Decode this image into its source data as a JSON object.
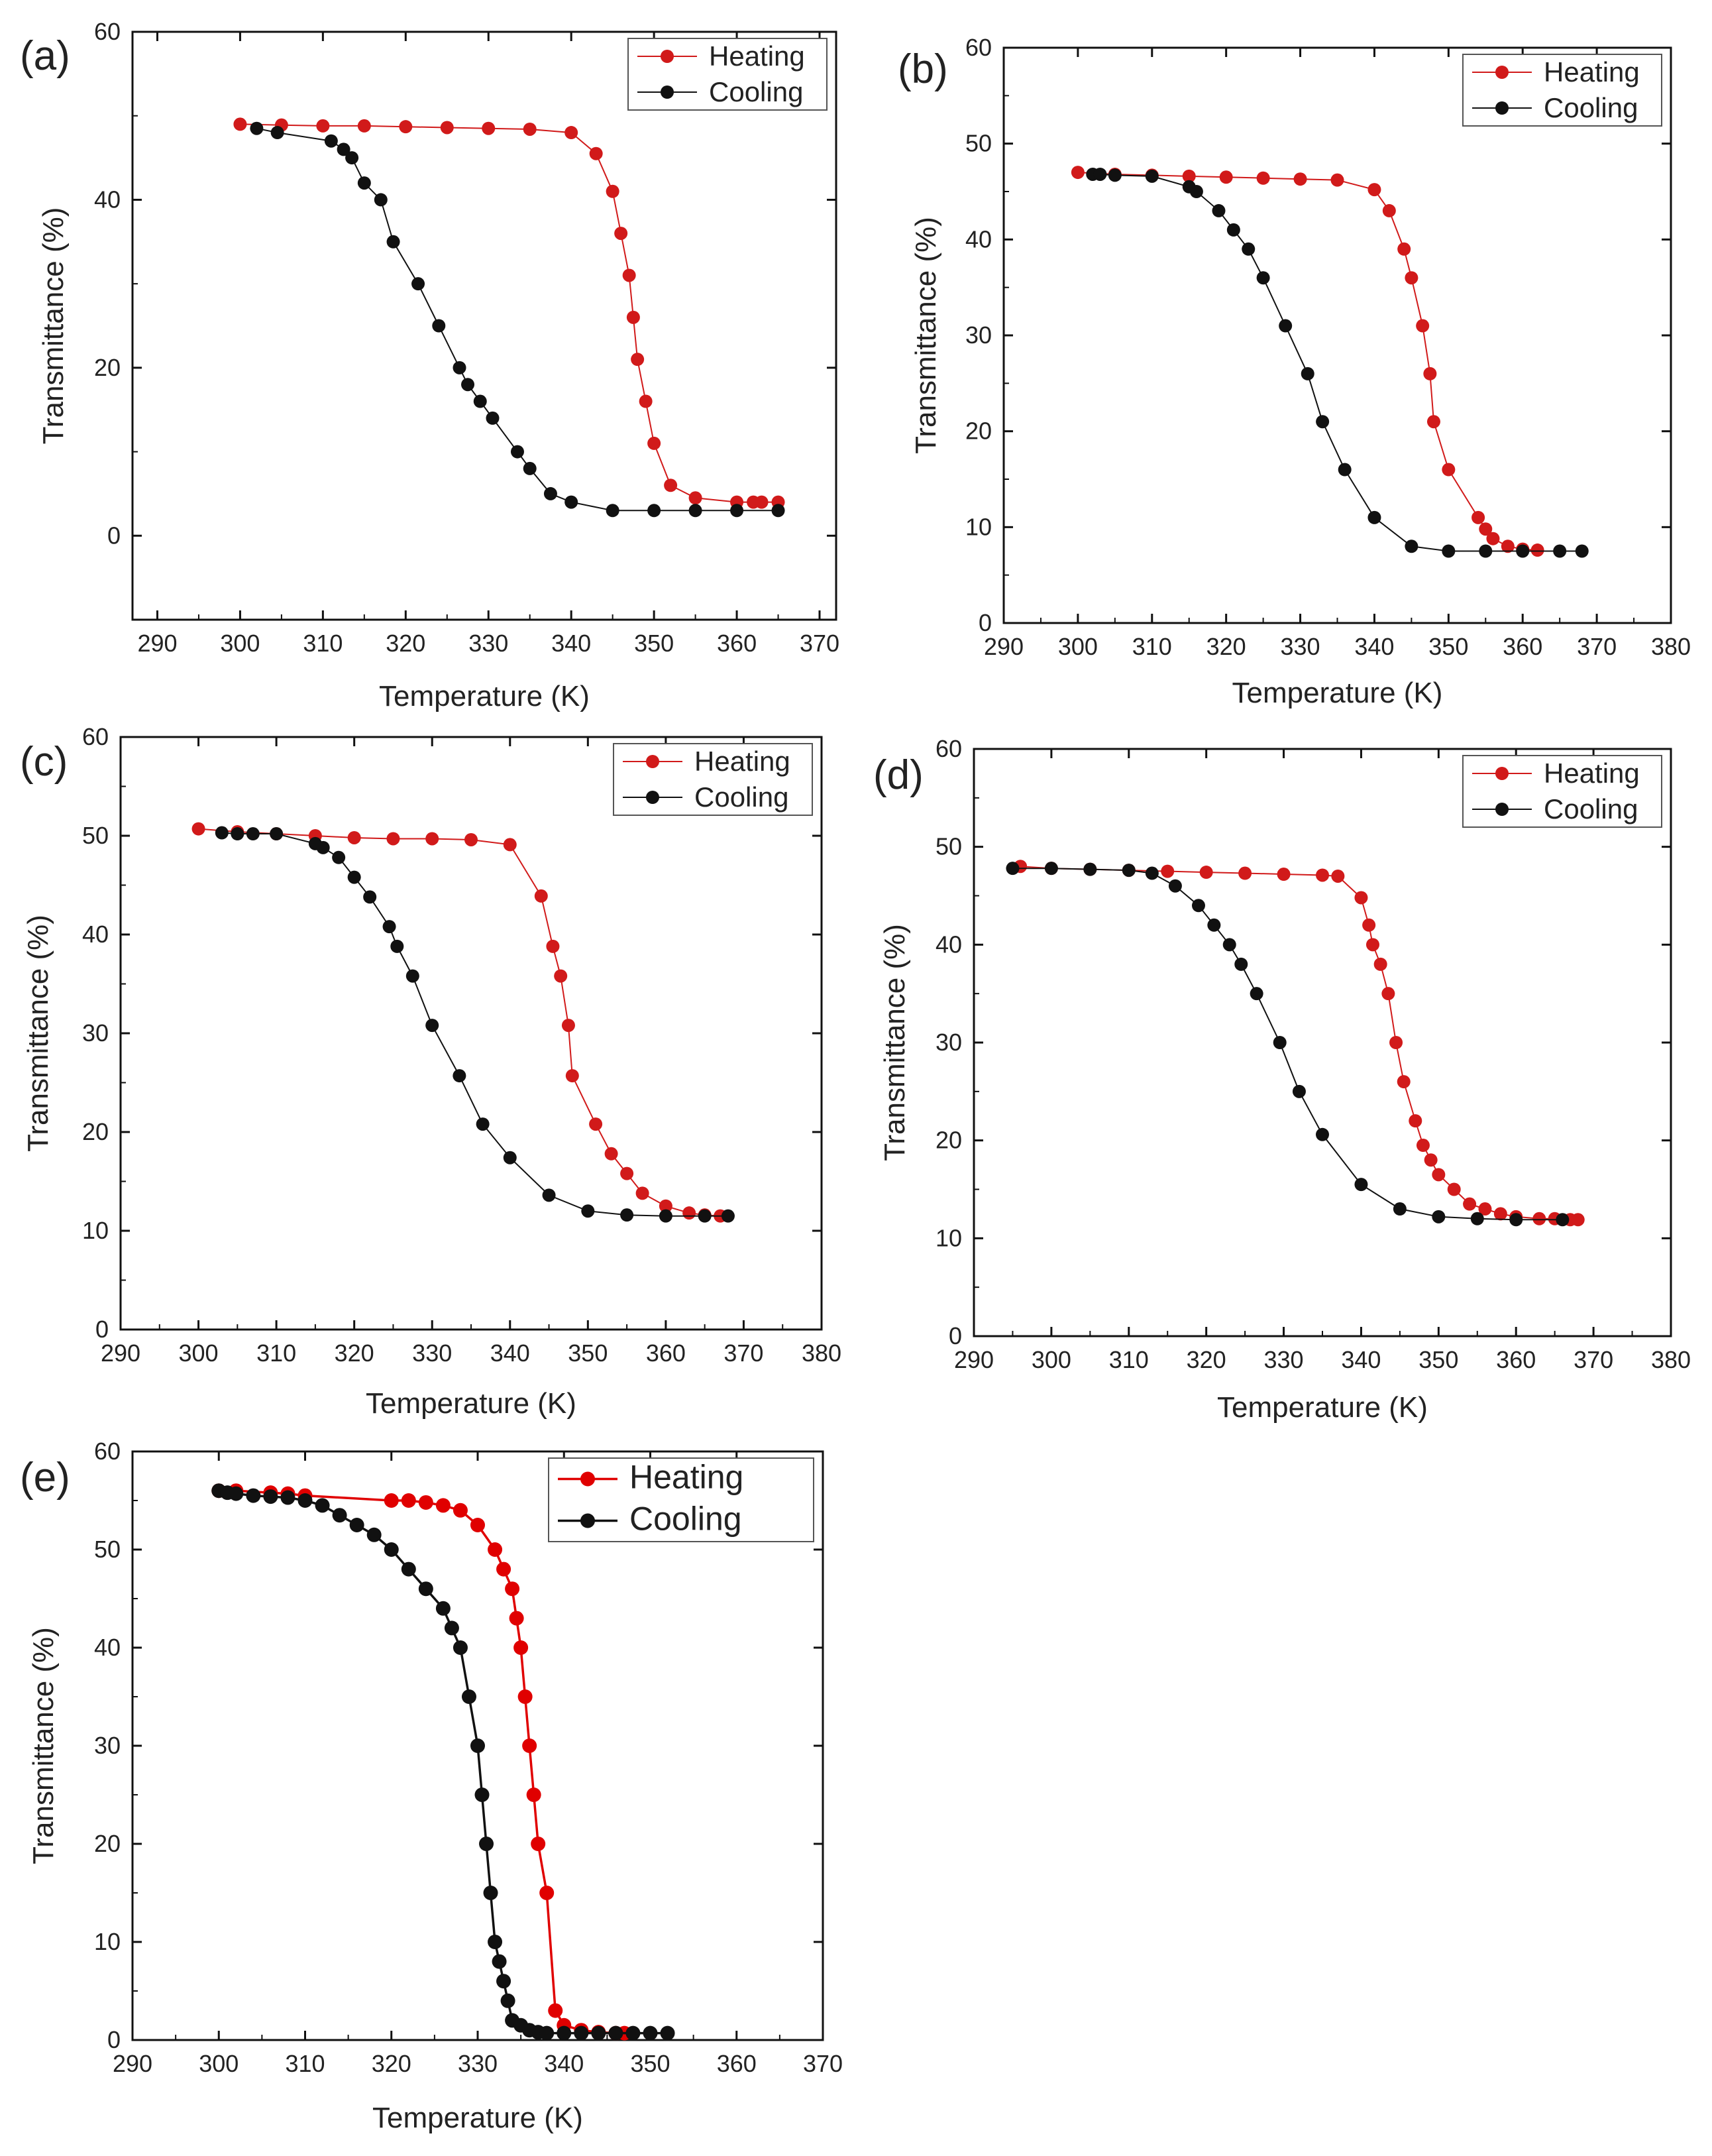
{
  "figure": {
    "panels": [
      "(a)",
      "(b)",
      "(c)",
      "(d)",
      "(e)"
    ]
  },
  "chart_data": [
    {
      "type": "line",
      "panel_label": "(a)",
      "xlabel": "Temperature (K)",
      "ylabel": "Transmittance (%)",
      "xlim": [
        287,
        372
      ],
      "ylim": [
        -10,
        60
      ],
      "xticks": [
        290,
        300,
        310,
        320,
        330,
        340,
        350,
        360,
        370
      ],
      "yticks": [
        0,
        20,
        40,
        60
      ],
      "legend_position": "top-right",
      "series": [
        {
          "name": "Heating",
          "color": "#d11a1a",
          "x": [
            300,
            305,
            310,
            315,
            320,
            325,
            330,
            335,
            340,
            343,
            345,
            346,
            347,
            347.5,
            348,
            349,
            350,
            352,
            355,
            360,
            362,
            363,
            365
          ],
          "y": [
            49,
            48.9,
            48.8,
            48.8,
            48.7,
            48.6,
            48.5,
            48.4,
            48,
            45.5,
            41,
            36,
            31,
            26,
            21,
            16,
            11,
            6,
            4.5,
            4,
            4,
            4,
            4
          ]
        },
        {
          "name": "Cooling",
          "color": "#111111",
          "x": [
            302,
            304.5,
            311,
            312.5,
            313.5,
            315,
            317,
            318.5,
            321.5,
            324,
            326.5,
            327.5,
            329,
            330.5,
            333.5,
            335,
            337.5,
            340,
            345,
            350,
            355,
            360,
            365
          ],
          "y": [
            48.5,
            48,
            47,
            46,
            45,
            42,
            40,
            35,
            30,
            25,
            20,
            18,
            16,
            14,
            10,
            8,
            5,
            4,
            3,
            3,
            3,
            3,
            3
          ]
        }
      ]
    },
    {
      "type": "line",
      "panel_label": "(b)",
      "xlabel": "Temperature (K)",
      "ylabel": "Transmittance (%)",
      "xlim": [
        290,
        380
      ],
      "ylim": [
        0,
        60
      ],
      "xticks": [
        290,
        300,
        310,
        320,
        330,
        340,
        350,
        360,
        370,
        380
      ],
      "yticks": [
        0,
        10,
        20,
        30,
        40,
        50,
        60
      ],
      "legend_position": "top-right",
      "series": [
        {
          "name": "Heating",
          "color": "#d11a1a",
          "x": [
            300,
            305,
            310,
            315,
            320,
            325,
            330,
            335,
            340,
            342,
            344,
            345,
            346.5,
            347.5,
            348,
            350,
            354,
            355,
            356,
            358,
            360,
            362
          ],
          "y": [
            47,
            46.8,
            46.7,
            46.6,
            46.5,
            46.4,
            46.3,
            46.2,
            45.2,
            43,
            39,
            36,
            31,
            26,
            21,
            16,
            11,
            9.8,
            8.8,
            8,
            7.7,
            7.6
          ]
        },
        {
          "name": "Cooling",
          "color": "#111111",
          "x": [
            302,
            303,
            305,
            310,
            315,
            316,
            319,
            321,
            323,
            325,
            328,
            331,
            333,
            336,
            340,
            345,
            350,
            355,
            360,
            365,
            368
          ],
          "y": [
            46.8,
            46.8,
            46.7,
            46.6,
            45.5,
            45,
            43,
            41,
            39,
            36,
            31,
            26,
            21,
            16,
            11,
            8,
            7.5,
            7.5,
            7.5,
            7.5,
            7.5
          ]
        }
      ]
    },
    {
      "type": "line",
      "panel_label": "(c)",
      "xlabel": "Temperature (K)",
      "ylabel": "Transmittance (%)",
      "xlim": [
        290,
        380
      ],
      "ylim": [
        0,
        60
      ],
      "xticks": [
        290,
        300,
        310,
        320,
        330,
        340,
        350,
        360,
        370,
        380
      ],
      "yticks": [
        0,
        10,
        20,
        30,
        40,
        50,
        60
      ],
      "legend_position": "top-right",
      "series": [
        {
          "name": "Heating",
          "color": "#d11a1a",
          "x": [
            300,
            305,
            310,
            315,
            320,
            325,
            330,
            335,
            340,
            344,
            345.5,
            346.5,
            347.5,
            348,
            351,
            353,
            355,
            357,
            360,
            363,
            365,
            367
          ],
          "y": [
            50.7,
            50.4,
            50.2,
            50,
            49.8,
            49.7,
            49.7,
            49.6,
            49.1,
            43.9,
            38.8,
            35.8,
            30.8,
            25.7,
            20.8,
            17.8,
            15.8,
            13.8,
            12.5,
            11.8,
            11.6,
            11.5
          ]
        },
        {
          "name": "Cooling",
          "color": "#111111",
          "x": [
            303,
            305,
            307,
            310,
            315,
            316,
            318,
            320,
            322,
            324.5,
            325.5,
            327.5,
            330,
            333.5,
            336.5,
            340,
            345,
            350,
            355,
            360,
            365,
            368
          ],
          "y": [
            50.3,
            50.2,
            50.2,
            50.2,
            49.2,
            48.8,
            47.8,
            45.8,
            43.8,
            40.8,
            38.8,
            35.8,
            30.8,
            25.7,
            20.8,
            17.4,
            13.6,
            12,
            11.6,
            11.5,
            11.5,
            11.5
          ]
        }
      ]
    },
    {
      "type": "line",
      "panel_label": "(d)",
      "xlabel": "Temperature (K)",
      "ylabel": "Transmittance (%)",
      "xlim": [
        290,
        380
      ],
      "ylim": [
        0,
        60
      ],
      "xticks": [
        290,
        300,
        310,
        320,
        330,
        340,
        350,
        360,
        370,
        380
      ],
      "yticks": [
        0,
        10,
        20,
        30,
        40,
        50,
        60
      ],
      "legend_position": "top-right",
      "series": [
        {
          "name": "Heating",
          "color": "#d11a1a",
          "x": [
            296,
            300,
            305,
            310,
            315,
            320,
            325,
            330,
            335,
            337,
            340,
            341,
            341.5,
            342.5,
            343.5,
            344.5,
            345.5,
            347,
            348,
            349,
            350,
            352,
            354,
            356,
            358,
            360,
            363,
            365,
            367,
            368
          ],
          "y": [
            48,
            47.8,
            47.7,
            47.6,
            47.5,
            47.4,
            47.3,
            47.2,
            47.1,
            47,
            44.8,
            42,
            40,
            38,
            35,
            30,
            26,
            22,
            19.5,
            18,
            16.5,
            15,
            13.5,
            13,
            12.5,
            12.2,
            12,
            12,
            11.9,
            11.9
          ]
        },
        {
          "name": "Cooling",
          "color": "#111111",
          "x": [
            295,
            300,
            305,
            310,
            313,
            316,
            319,
            321,
            323,
            324.5,
            326.5,
            329.5,
            332,
            335,
            340,
            345,
            350,
            355,
            360,
            366
          ],
          "y": [
            47.8,
            47.8,
            47.7,
            47.6,
            47.3,
            46,
            44,
            42,
            40,
            38,
            35,
            30,
            25,
            20.6,
            15.5,
            13,
            12.2,
            12,
            11.9,
            11.9
          ]
        }
      ]
    },
    {
      "type": "line",
      "panel_label": "(e)",
      "xlabel": "Temperature (K)",
      "ylabel": "Transmittance (%)",
      "xlim": [
        290,
        370
      ],
      "ylim": [
        0,
        60
      ],
      "xticks": [
        290,
        300,
        310,
        320,
        330,
        340,
        350,
        360,
        370
      ],
      "yticks": [
        0,
        10,
        20,
        30,
        40,
        50,
        60
      ],
      "legend_position": "top-right",
      "series": [
        {
          "name": "Heating",
          "color": "#e00000",
          "x": [
            300,
            302,
            306,
            308,
            310,
            320,
            322,
            324,
            326,
            328,
            330,
            332,
            333,
            334,
            334.5,
            335,
            335.5,
            336,
            336.5,
            337,
            338,
            339,
            340,
            342,
            344,
            346,
            347
          ],
          "y": [
            56,
            56,
            55.8,
            55.7,
            55.5,
            55,
            55,
            54.8,
            54.5,
            54,
            52.5,
            50,
            48,
            46,
            43,
            40,
            35,
            30,
            25,
            20,
            15,
            3,
            1.5,
            1,
            0.8,
            0.7,
            0.7
          ]
        },
        {
          "name": "Cooling",
          "color": "#111111",
          "x": [
            300,
            301,
            302,
            304,
            306,
            308,
            310,
            312,
            314,
            316,
            318,
            320,
            322,
            324,
            326,
            327,
            328,
            329,
            330,
            330.5,
            331,
            331.5,
            332,
            332.5,
            333,
            333.5,
            334,
            335,
            336,
            337,
            338,
            340,
            342,
            344,
            346,
            348,
            350,
            352
          ],
          "y": [
            56,
            55.8,
            55.7,
            55.5,
            55.4,
            55.3,
            55,
            54.5,
            53.5,
            52.5,
            51.5,
            50,
            48,
            46,
            44,
            42,
            40,
            35,
            30,
            25,
            20,
            15,
            10,
            8,
            6,
            4,
            2,
            1.5,
            1,
            0.8,
            0.7,
            0.7,
            0.7,
            0.7,
            0.7,
            0.7,
            0.7,
            0.7
          ]
        }
      ]
    }
  ]
}
